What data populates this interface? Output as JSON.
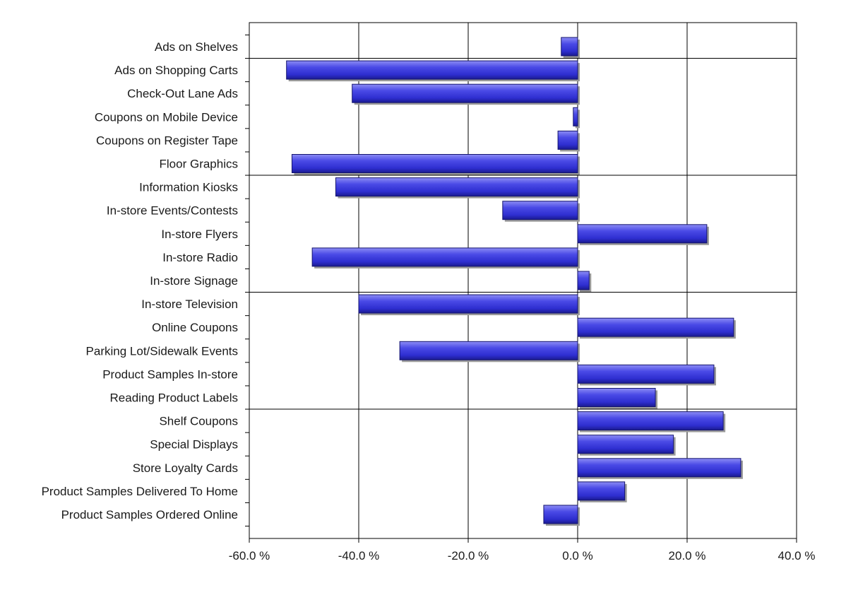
{
  "chart_data": {
    "type": "bar",
    "orientation": "horizontal",
    "categories": [
      "Ads on Shelves",
      "Ads on Shopping Carts",
      "Check-Out Lane Ads",
      "Coupons on Mobile Device",
      "Coupons on Register Tape",
      "Floor Graphics",
      "Information Kiosks",
      "In-store Events/Contests",
      "In-store Flyers",
      "In-store Radio",
      "In-store Signage",
      "In-store Television",
      "Online Coupons",
      "Parking Lot/Sidewalk Events",
      "Product Samples In-store",
      "Reading Product Labels",
      "Shelf Coupons",
      "Special Displays",
      "Store Loyalty Cards",
      "Product Samples Delivered To Home",
      "Product Samples Ordered Online"
    ],
    "values": [
      -3.0,
      -53.2,
      -41.2,
      -0.8,
      -3.6,
      -52.2,
      -44.2,
      -13.7,
      23.6,
      -48.5,
      2.1,
      -40.0,
      28.5,
      -32.5,
      24.9,
      14.2,
      26.6,
      17.5,
      29.8,
      8.6,
      -6.2
    ],
    "xlim": [
      -60,
      40
    ],
    "ticks": [
      -60,
      -40,
      -20,
      0,
      20,
      40
    ],
    "tick_labels": [
      "-60.0 %",
      "-40.0 %",
      "-20.0 %",
      "0.0 %",
      "20.0 %",
      "40.0 %"
    ],
    "grid": true,
    "bar_color": "#3a3ad8",
    "title": "",
    "xlabel": "",
    "ylabel": ""
  }
}
